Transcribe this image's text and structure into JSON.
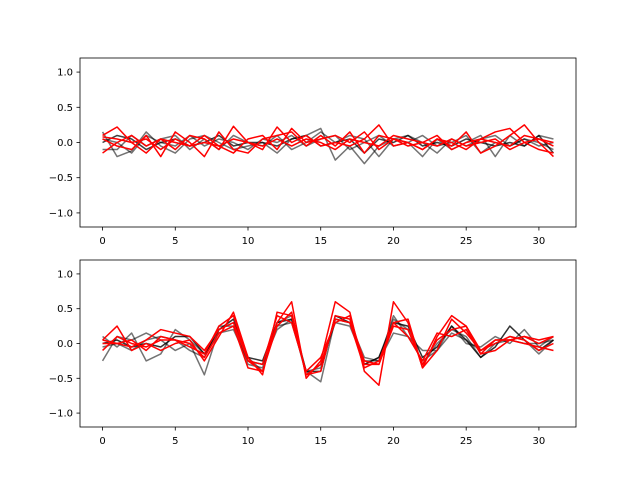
{
  "chart_data": [
    {
      "type": "line",
      "title": "",
      "xlabel": "",
      "ylabel": "",
      "xlim": [
        -1.55,
        32.55
      ],
      "ylim": [
        -1.2,
        1.2
      ],
      "xticks": [
        0,
        5,
        10,
        15,
        20,
        25,
        30
      ],
      "yticks": [
        -1.0,
        -0.5,
        0.0,
        0.5,
        1.0
      ],
      "ytick_labels": [
        "−1.0",
        "−0.5",
        "0.0",
        "0.5",
        "1.0"
      ],
      "grid": false,
      "x": [
        0,
        1,
        2,
        3,
        4,
        5,
        6,
        7,
        8,
        9,
        10,
        11,
        12,
        13,
        14,
        15,
        16,
        17,
        18,
        19,
        20,
        21,
        22,
        23,
        24,
        25,
        26,
        27,
        28,
        29,
        30,
        31
      ],
      "series": [
        {
          "color": "#000000",
          "opacity": 0.55,
          "values": [
            0.15,
            -0.2,
            -0.12,
            0.15,
            -0.05,
            -0.15,
            0.05,
            0.1,
            0.0,
            -0.1,
            -0.05,
            0.0,
            -0.15,
            0.05,
            0.1,
            0.2,
            -0.25,
            -0.05,
            -0.3,
            -0.05,
            0.05,
            0.0,
            -0.2,
            0.05,
            -0.1,
            0.0,
            0.1,
            -0.2,
            0.1,
            -0.05,
            0.1,
            0.05
          ]
        },
        {
          "color": "#000000",
          "opacity": 0.55,
          "values": [
            -0.1,
            -0.1,
            0.1,
            -0.05,
            0.05,
            0.1,
            -0.1,
            0.05,
            -0.1,
            0.1,
            0.0,
            -0.05,
            0.1,
            -0.1,
            0.0,
            0.15,
            0.0,
            0.1,
            0.05,
            -0.2,
            0.05,
            0.1,
            0.0,
            -0.15,
            0.05,
            -0.05,
            0.05,
            0.1,
            -0.05,
            0.05,
            -0.05,
            0.0
          ]
        },
        {
          "color": "#000000",
          "opacity": 0.55,
          "values": [
            0.05,
            0.0,
            -0.15,
            0.1,
            0.0,
            -0.05,
            0.1,
            -0.05,
            0.05,
            0.0,
            -0.1,
            0.05,
            0.0,
            0.1,
            -0.05,
            0.05,
            0.1,
            -0.1,
            0.0,
            0.1,
            -0.05,
            0.0,
            0.1,
            -0.05,
            0.0,
            0.1,
            -0.15,
            0.0,
            -0.05,
            0.05,
            0.0,
            -0.1
          ]
        },
        {
          "color": "#000000",
          "opacity": 0.75,
          "values": [
            0.0,
            0.1,
            0.05,
            -0.1,
            0.0,
            0.05,
            -0.05,
            0.0,
            0.1,
            -0.05,
            0.0,
            0.0,
            -0.05,
            0.05,
            0.1,
            -0.05,
            0.0,
            0.05,
            -0.15,
            0.05,
            0.0,
            0.1,
            -0.05,
            0.0,
            -0.05,
            0.05,
            0.0,
            -0.05,
            0.0,
            -0.05,
            0.1,
            -0.15
          ]
        },
        {
          "color": "#ff0000",
          "opacity": 1.0,
          "values": [
            0.1,
            0.22,
            0.0,
            -0.15,
            0.05,
            -0.1,
            0.1,
            0.05,
            -0.1,
            0.23,
            0.0,
            -0.1,
            0.22,
            0.0,
            0.1,
            -0.05,
            0.0,
            -0.05,
            0.05,
            0.25,
            -0.05,
            0.0,
            -0.1,
            0.05,
            -0.05,
            0.15,
            -0.15,
            -0.05,
            0.1,
            0.25,
            0.0,
            -0.2
          ]
        },
        {
          "color": "#ff0000",
          "opacity": 1.0,
          "values": [
            0.05,
            -0.05,
            -0.1,
            0.1,
            -0.2,
            0.15,
            0.0,
            -0.2,
            0.15,
            -0.1,
            -0.15,
            0.05,
            0.1,
            0.15,
            -0.05,
            0.1,
            -0.05,
            0.15,
            -0.15,
            0.1,
            0.05,
            0.0,
            -0.1,
            0.05,
            0.0,
            -0.1,
            0.05,
            0.15,
            0.2,
            0.0,
            -0.1,
            -0.15
          ]
        },
        {
          "color": "#ff0000",
          "opacity": 1.0,
          "values": [
            -0.15,
            0.0,
            0.1,
            -0.05,
            0.05,
            0.0,
            -0.05,
            0.1,
            -0.05,
            -0.15,
            0.05,
            0.1,
            -0.1,
            0.2,
            0.0,
            0.05,
            0.1,
            0.0,
            0.15,
            -0.1,
            0.05,
            -0.05,
            0.0,
            0.1,
            -0.1,
            0.0,
            0.05,
            0.0,
            -0.05,
            0.1,
            0.05,
            0.0
          ]
        },
        {
          "color": "#ff0000",
          "opacity": 1.0,
          "values": [
            0.08,
            0.05,
            0.0,
            0.05,
            -0.1,
            0.05,
            -0.05,
            0.0,
            -0.05,
            0.05,
            0.0,
            -0.05,
            0.05,
            -0.05,
            0.05,
            0.0,
            -0.1,
            0.05,
            0.0,
            -0.05,
            0.1,
            0.05,
            0.0,
            -0.05,
            0.05,
            -0.05,
            0.0,
            0.05,
            -0.1,
            0.0,
            0.05,
            -0.05
          ]
        }
      ]
    },
    {
      "type": "line",
      "title": "",
      "xlabel": "",
      "ylabel": "",
      "xlim": [
        -1.55,
        32.55
      ],
      "ylim": [
        -1.2,
        1.2
      ],
      "xticks": [
        0,
        5,
        10,
        15,
        20,
        25,
        30
      ],
      "yticks": [
        -1.0,
        -0.5,
        0.0,
        0.5,
        1.0
      ],
      "ytick_labels": [
        "−1.0",
        "−0.5",
        "0.0",
        "0.5",
        "1.0"
      ],
      "grid": false,
      "x": [
        0,
        1,
        2,
        3,
        4,
        5,
        6,
        7,
        8,
        9,
        10,
        11,
        12,
        13,
        14,
        15,
        16,
        17,
        18,
        19,
        20,
        21,
        22,
        23,
        24,
        25,
        26,
        27,
        28,
        29,
        30,
        31
      ],
      "series": [
        {
          "color": "#000000",
          "opacity": 0.55,
          "values": [
            -0.25,
            0.1,
            0.05,
            0.15,
            0.05,
            -0.1,
            0.0,
            -0.45,
            0.2,
            0.3,
            -0.2,
            -0.4,
            0.3,
            0.4,
            -0.4,
            -0.55,
            0.35,
            0.3,
            -0.3,
            -0.2,
            0.35,
            0.2,
            -0.3,
            0.0,
            0.2,
            0.1,
            -0.2,
            0.0,
            0.1,
            0.05,
            -0.15,
            0.05
          ]
        },
        {
          "color": "#000000",
          "opacity": 0.55,
          "values": [
            0.1,
            -0.05,
            0.15,
            -0.25,
            -0.15,
            0.2,
            0.05,
            -0.15,
            0.15,
            0.2,
            -0.25,
            -0.3,
            0.2,
            0.35,
            -0.45,
            -0.3,
            0.3,
            0.25,
            -0.25,
            -0.25,
            0.15,
            0.1,
            -0.1,
            -0.1,
            0.25,
            0.0,
            -0.05,
            0.1,
            0.0,
            0.2,
            -0.05,
            0.1
          ]
        },
        {
          "color": "#000000",
          "opacity": 0.55,
          "values": [
            -0.05,
            0.0,
            -0.1,
            0.05,
            0.1,
            0.05,
            -0.1,
            -0.2,
            0.25,
            0.25,
            -0.3,
            -0.35,
            0.25,
            0.3,
            -0.4,
            -0.35,
            0.35,
            0.3,
            -0.2,
            -0.25,
            0.4,
            0.1,
            -0.25,
            -0.1,
            0.15,
            0.05,
            -0.1,
            0.0,
            0.05,
            0.0,
            0.0,
            0.05
          ]
        },
        {
          "color": "#000000",
          "opacity": 0.8,
          "values": [
            0.0,
            0.05,
            -0.05,
            0.0,
            -0.05,
            0.1,
            0.1,
            -0.15,
            0.2,
            0.35,
            -0.2,
            -0.25,
            0.3,
            0.35,
            -0.4,
            -0.4,
            0.4,
            0.3,
            -0.3,
            -0.2,
            0.3,
            0.25,
            -0.2,
            -0.05,
            0.25,
            0.05,
            -0.2,
            -0.05,
            0.25,
            0.05,
            -0.1,
            0.05
          ]
        },
        {
          "color": "#ff0000",
          "opacity": 1.0,
          "values": [
            0.05,
            0.25,
            -0.1,
            0.0,
            -0.1,
            0.0,
            0.05,
            -0.25,
            0.1,
            0.45,
            -0.2,
            -0.45,
            0.45,
            0.4,
            -0.45,
            -0.4,
            0.4,
            0.35,
            -0.25,
            -0.3,
            0.3,
            0.35,
            -0.35,
            0.1,
            0.4,
            0.25,
            -0.1,
            0.05,
            0.05,
            0.0,
            -0.05,
            -0.1
          ]
        },
        {
          "color": "#ff0000",
          "opacity": 1.0,
          "values": [
            0.0,
            0.0,
            -0.05,
            0.05,
            0.2,
            0.15,
            0.1,
            -0.1,
            0.2,
            0.3,
            -0.25,
            -0.4,
            0.25,
            0.45,
            -0.45,
            -0.3,
            0.35,
            0.3,
            -0.35,
            -0.25,
            0.3,
            0.1,
            -0.25,
            0.15,
            0.1,
            0.2,
            -0.15,
            -0.1,
            0.05,
            0.1,
            0.05,
            0.1
          ]
        },
        {
          "color": "#ff0000",
          "opacity": 1.0,
          "values": [
            -0.1,
            0.1,
            0.0,
            -0.05,
            0.05,
            0.05,
            0.0,
            -0.2,
            0.15,
            0.25,
            -0.35,
            -0.4,
            0.3,
            0.6,
            -0.5,
            -0.25,
            0.6,
            0.45,
            -0.4,
            -0.6,
            0.6,
            0.3,
            -0.35,
            -0.1,
            0.35,
            0.15,
            -0.1,
            0.0,
            0.1,
            0.05,
            -0.1,
            0.0
          ]
        },
        {
          "color": "#ff0000",
          "opacity": 1.0,
          "values": [
            0.05,
            0.0,
            0.05,
            -0.1,
            0.1,
            0.05,
            -0.05,
            -0.15,
            0.25,
            0.4,
            -0.25,
            -0.3,
            0.4,
            0.3,
            -0.4,
            -0.2,
            0.3,
            0.4,
            -0.3,
            -0.3,
            0.25,
            0.2,
            -0.3,
            0.05,
            0.2,
            0.25,
            -0.15,
            0.05,
            0.05,
            0.1,
            0.0,
            0.1
          ]
        }
      ]
    }
  ]
}
